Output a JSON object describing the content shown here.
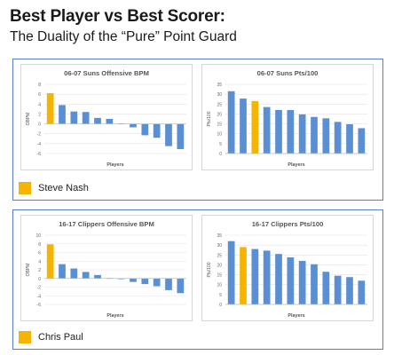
{
  "title": "Best Player vs Best Scorer:",
  "subtitle": "The Duality of the “Pure” Point Guard",
  "colors": {
    "highlight": "#f5b400",
    "bars": "#5b8fd4",
    "frame": "#5b7ec9"
  },
  "panels": [
    {
      "legend": "Steve Nash"
    },
    {
      "legend": "Chris Paul"
    }
  ],
  "chart_data": [
    {
      "type": "bar",
      "title": "06-07 Suns Offensive BPM",
      "xlabel": "Players",
      "ylabel": "OBPM",
      "ylim": [
        -6,
        8
      ],
      "yticks": [
        -6,
        -4,
        -2,
        0,
        2,
        4,
        6,
        8
      ],
      "highlight_index": 0,
      "values": [
        6.2,
        3.8,
        2.5,
        2.4,
        1.2,
        1.0,
        0.1,
        -0.7,
        -2.3,
        -2.8,
        -4.5,
        -5.1
      ]
    },
    {
      "type": "bar",
      "title": "06-07 Suns Pts/100",
      "xlabel": "Players",
      "ylabel": "Pts/100",
      "ylim": [
        0,
        35
      ],
      "yticks": [
        0,
        5,
        10,
        15,
        20,
        25,
        30,
        35
      ],
      "highlight_index": 2,
      "values": [
        31.5,
        27.8,
        26.5,
        23.5,
        22.0,
        22.0,
        19.8,
        18.5,
        17.8,
        16.0,
        14.8,
        12.8
      ]
    },
    {
      "type": "bar",
      "title": "16-17 Clippers Offensive BPM",
      "xlabel": "Players",
      "ylabel": "OBPM",
      "ylim": [
        -6,
        10
      ],
      "yticks": [
        -6,
        -4,
        -2,
        0,
        2,
        4,
        6,
        8,
        10
      ],
      "highlight_index": 0,
      "values": [
        7.9,
        3.3,
        2.3,
        1.5,
        0.8,
        0.1,
        -0.1,
        -0.8,
        -1.3,
        -1.8,
        -2.7,
        -3.4
      ]
    },
    {
      "type": "bar",
      "title": "16-17 Clippers Pts/100",
      "xlabel": "Players",
      "ylabel": "Pts/100",
      "ylim": [
        0,
        35
      ],
      "yticks": [
        0,
        5,
        10,
        15,
        20,
        25,
        30,
        35
      ],
      "highlight_index": 1,
      "values": [
        32.0,
        29.0,
        28.0,
        27.2,
        25.5,
        23.8,
        22.0,
        20.3,
        16.5,
        14.5,
        13.8,
        12.0
      ]
    }
  ]
}
